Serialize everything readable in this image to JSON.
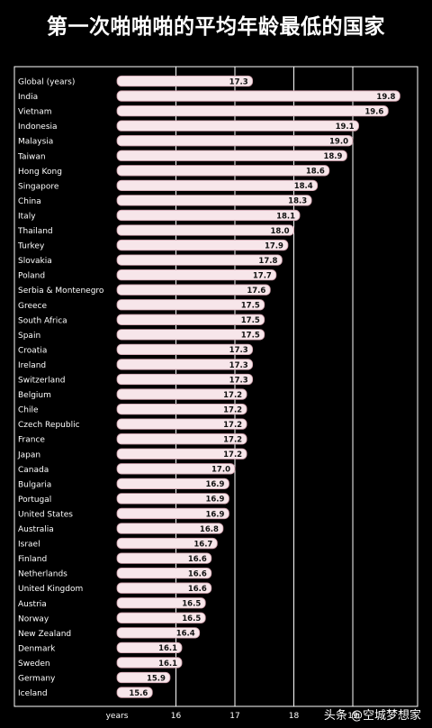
{
  "title": "第一次啪啪啪的平均年龄最低的国家",
  "watermark": "头条 @空城梦想家",
  "chart_data": {
    "type": "bar",
    "orientation": "horizontal",
    "title": "第一次啪啪啪的平均年龄最低的国家",
    "xlabel": "years",
    "xlim": [
      15,
      20
    ],
    "xticks": [
      16,
      17,
      18,
      19
    ],
    "grid": true,
    "colors": {
      "bar": "#f7e6ea",
      "bar_edge": "#c99aa6",
      "background": "#000000",
      "text": "#ffffff",
      "grid": "#ffffff"
    },
    "categories": [
      "Global (years)",
      "India",
      "Vietnam",
      "Indonesia",
      "Malaysia",
      "Taiwan",
      "Hong Kong",
      "Singapore",
      "China",
      "Italy",
      "Thailand",
      "Turkey",
      "Slovakia",
      "Poland",
      "Serbia & Montenegro",
      "Greece",
      "South Africa",
      "Spain",
      "Croatia",
      "Ireland",
      "Switzerland",
      "Belgium",
      "Chile",
      "Czech Republic",
      "France",
      "Japan",
      "Canada",
      "Bulgaria",
      "Portugal",
      "United States",
      "Australia",
      "Israel",
      "Finland",
      "Netherlands",
      "United Kingdom",
      "Austria",
      "Norway",
      "New Zealand",
      "Denmark",
      "Sweden",
      "Germany",
      "Iceland"
    ],
    "values": [
      17.3,
      19.8,
      19.6,
      19.1,
      19.0,
      18.9,
      18.6,
      18.4,
      18.3,
      18.1,
      18.0,
      17.9,
      17.8,
      17.7,
      17.6,
      17.5,
      17.5,
      17.5,
      17.3,
      17.3,
      17.3,
      17.2,
      17.2,
      17.2,
      17.2,
      17.2,
      17.0,
      16.9,
      16.9,
      16.9,
      16.8,
      16.7,
      16.6,
      16.6,
      16.6,
      16.5,
      16.5,
      16.4,
      16.1,
      16.1,
      15.9,
      15.6
    ],
    "value_labels": [
      "17.3",
      "19.8",
      "19.6",
      "19.1",
      "19.0",
      "18.9",
      "18.6",
      "18.4",
      "18.3",
      "18.1",
      "18.0",
      "17.9",
      "17.8",
      "17.7",
      "17.6",
      "17.5",
      "17.5",
      "17.5",
      "17.3",
      "17.3",
      "17.3",
      "17.2",
      "17.2",
      "17.2",
      "17.2",
      "17.2",
      "17.0",
      "16.9",
      "16.9",
      "16.9",
      "16.8",
      "16.7",
      "16.6",
      "16.6",
      "16.6",
      "16.5",
      "16.5",
      "16.4",
      "16.1",
      "16.1",
      "15.9",
      "15.6"
    ]
  }
}
